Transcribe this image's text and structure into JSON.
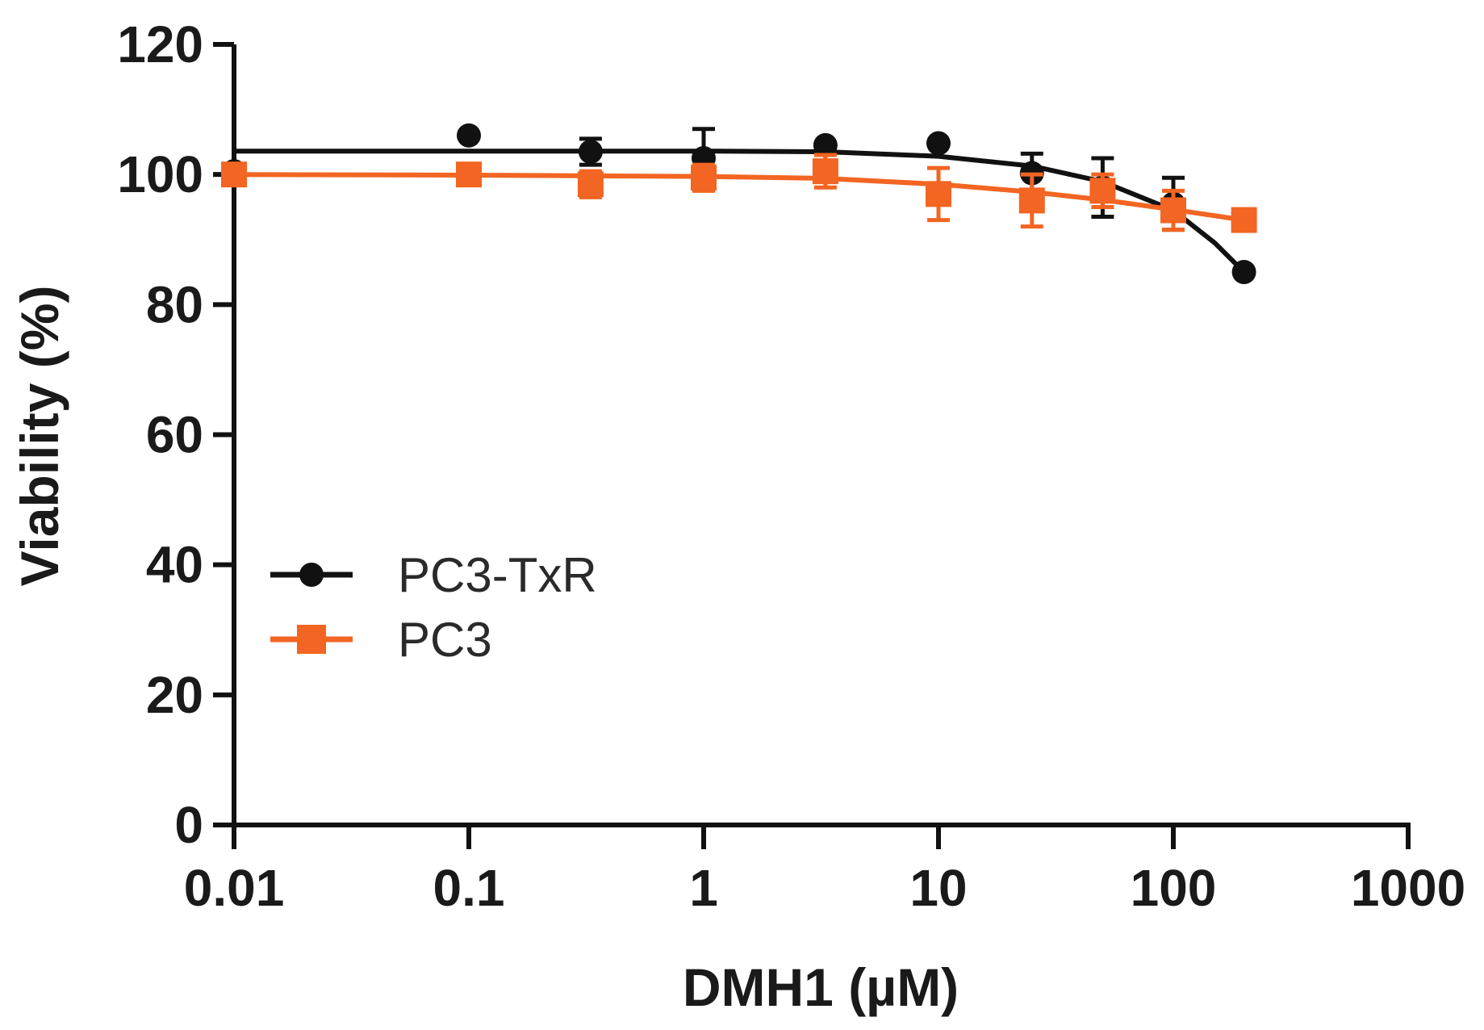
{
  "chart_data": {
    "type": "line",
    "title": "",
    "xlabel": "DMH1 (µM)",
    "ylabel": "Viability (%)",
    "xscale": "log",
    "xlim": [
      0.01,
      1000
    ],
    "ylim": [
      0,
      120
    ],
    "xticks": [
      0.01,
      0.1,
      1,
      10,
      100,
      1000
    ],
    "xtick_labels": [
      "0.01",
      "0.1",
      "1",
      "10",
      "100",
      "1000"
    ],
    "yticks": [
      0,
      20,
      40,
      60,
      80,
      100,
      120
    ],
    "ytick_labels": [
      "0",
      "20",
      "40",
      "60",
      "80",
      "100",
      "120"
    ],
    "grid": false,
    "legend_position": "middle-left",
    "series": [
      {
        "name": "PC3-TxR",
        "color": "#111111",
        "marker": "circle",
        "x": [
          0.01,
          0.1,
          0.33,
          1,
          3.3,
          10,
          25,
          50,
          100,
          200
        ],
        "y": [
          100.5,
          106,
          103.5,
          102.5,
          104.5,
          104.8,
          100.2,
          98,
          95.5,
          85
        ],
        "error": [
          0,
          0,
          2,
          4.5,
          0,
          0,
          3,
          4.5,
          4,
          0
        ],
        "fit": [
          [
            0.01,
            103.6
          ],
          [
            0.1,
            103.6
          ],
          [
            1,
            103.6
          ],
          [
            3.3,
            103.5
          ],
          [
            10,
            102.8
          ],
          [
            25,
            101.3
          ],
          [
            50,
            98.9
          ],
          [
            100,
            94.5
          ],
          [
            150,
            89.5
          ],
          [
            200,
            85
          ]
        ]
      },
      {
        "name": "PC3",
        "color": "#f26522",
        "marker": "square",
        "x": [
          0.01,
          0.1,
          0.33,
          1,
          3.3,
          10,
          25,
          50,
          100,
          200
        ],
        "y": [
          100,
          100,
          98.5,
          99.5,
          100.5,
          97,
          96,
          97.5,
          94.5,
          93
        ],
        "error": [
          0,
          0,
          2,
          2,
          2.5,
          4,
          4,
          2.5,
          3,
          0
        ],
        "fit": [
          [
            0.01,
            100
          ],
          [
            0.1,
            99.9
          ],
          [
            1,
            99.7
          ],
          [
            3.3,
            99.4
          ],
          [
            10,
            98.5
          ],
          [
            25,
            97.3
          ],
          [
            50,
            96.1
          ],
          [
            100,
            94.6
          ],
          [
            200,
            93
          ]
        ]
      }
    ]
  }
}
